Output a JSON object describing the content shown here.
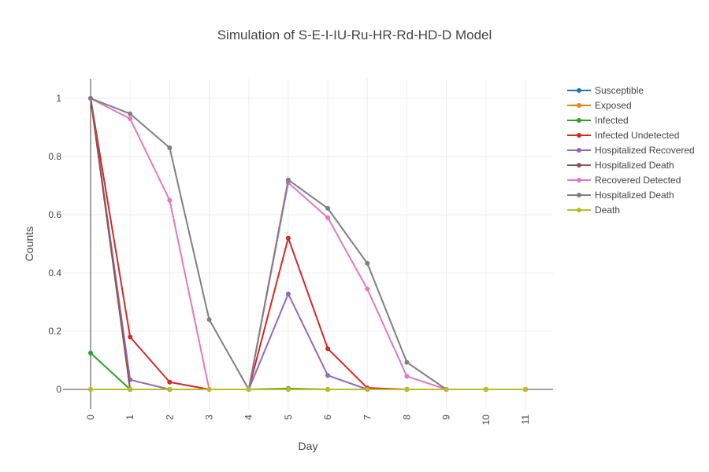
{
  "chart_data": {
    "type": "line",
    "title": "Simulation of S-E-I-IU-Ru-HR-Rd-HD-D Model",
    "xlabel": "Day",
    "ylabel": "Counts",
    "x": [
      0,
      1,
      2,
      3,
      4,
      5,
      6,
      7,
      8,
      9,
      10,
      11
    ],
    "xlim": [
      0,
      11
    ],
    "ylim": [
      0,
      1
    ],
    "y_ticks": [
      0,
      0.2,
      0.4,
      0.6,
      0.8,
      1
    ],
    "grid": true,
    "legend_position": "right",
    "series": [
      {
        "name": "Susceptible",
        "color": "#1f77b4",
        "values": [
          0,
          0,
          0,
          0,
          0,
          0,
          0,
          0,
          0,
          0,
          0,
          0
        ]
      },
      {
        "name": "Exposed",
        "color": "#ff7f0e",
        "values": [
          0,
          0,
          0,
          0,
          0,
          0,
          0,
          0,
          0,
          0,
          0,
          0
        ]
      },
      {
        "name": "Infected",
        "color": "#2ca02c",
        "values": [
          0.125,
          0,
          0,
          0,
          0,
          0.003,
          0,
          0,
          0,
          0,
          0,
          0
        ]
      },
      {
        "name": "Infected Undetected",
        "color": "#d62728",
        "values": [
          1,
          0.18,
          0.025,
          0,
          0,
          0.52,
          0.14,
          0.005,
          0,
          0,
          0,
          0
        ]
      },
      {
        "name": "Hospitalized Recovered",
        "color": "#9467bd",
        "values": [
          1,
          0.033,
          0,
          0,
          0,
          0.328,
          0.048,
          0,
          0,
          0,
          0,
          0
        ]
      },
      {
        "name": "Hospitalized Death",
        "color": "#8c564b",
        "values": [
          1,
          0,
          0,
          0,
          0,
          0,
          0,
          0,
          0,
          0,
          0,
          0
        ]
      },
      {
        "name": "Recovered Detected",
        "color": "#e377c2",
        "values": [
          1,
          0.93,
          0.65,
          0,
          0,
          0.71,
          0.59,
          0.345,
          0.045,
          0,
          0,
          0
        ]
      },
      {
        "name": "Hospitalized Death",
        "color": "#7f7f7f",
        "values": [
          1,
          0.947,
          0.83,
          0.24,
          0,
          0.72,
          0.622,
          0.433,
          0.093,
          0,
          0,
          0
        ]
      },
      {
        "name": "Death",
        "color": "#bcbd22",
        "values": [
          0,
          0,
          0,
          0,
          0,
          0,
          0,
          0,
          0,
          0,
          0,
          0
        ]
      }
    ]
  }
}
